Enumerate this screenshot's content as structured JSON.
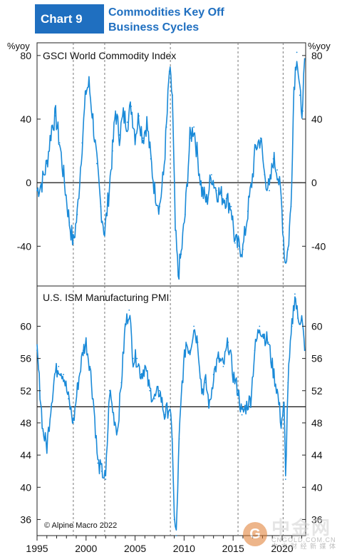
{
  "header": {
    "badge": "Chart 9",
    "title_line1": "Commodities Key Off",
    "title_line2": "Business Cycles"
  },
  "credit": "© Alpine Macro 2022",
  "watermark": {
    "brand": "中金网",
    "url": "CNGOLD.COM.CN",
    "tagline": "中 文 财 经 新 媒 体"
  },
  "colors": {
    "line": "#1a8ad8",
    "grid": "#555555",
    "accent": "#1f6fc0"
  },
  "chart_data": [
    {
      "type": "line",
      "title": "GSCI World Commodity Index",
      "ylabel_left": "%yoy",
      "ylabel_right": "%yoy",
      "ylim": [
        -65,
        88
      ],
      "xlim": [
        1995,
        2022.4
      ],
      "yticks": [
        80,
        40,
        0,
        -40
      ],
      "ytick_labels": [
        "80",
        "40",
        "0",
        "-40"
      ],
      "zero_line": 0,
      "recessions": [
        [
          1998.7,
          1998.7
        ],
        [
          2001.9,
          2001.9
        ],
        [
          2008.6,
          2008.6
        ],
        [
          2015.5,
          2015.5
        ],
        [
          2020.1,
          2020.1
        ]
      ],
      "series": [
        {
          "x": [
            1995.0,
            1995.5,
            1996.0,
            1996.5,
            1996.9,
            1997.3,
            1997.8,
            1998.3,
            1998.7,
            1999.1,
            1999.6,
            2000.0,
            2000.3,
            2000.7,
            2001.1,
            2001.5,
            2001.9,
            2002.3,
            2002.7,
            2003.0,
            2003.4,
            2003.8,
            2004.2,
            2004.6,
            2005.0,
            2005.4,
            2005.8,
            2006.2,
            2006.6,
            2007.0,
            2007.5,
            2007.9,
            2008.2,
            2008.5,
            2008.8,
            2009.1,
            2009.4,
            2009.7,
            2010.1,
            2010.6,
            2011.0,
            2011.4,
            2011.8,
            2012.3,
            2012.8,
            2013.3,
            2013.8,
            2014.3,
            2014.8,
            2015.2,
            2015.6,
            2016.0,
            2016.5,
            2016.9,
            2017.3,
            2017.8,
            2018.2,
            2018.7,
            2019.1,
            2019.5,
            2019.9,
            2020.3,
            2020.6,
            2020.9,
            2021.2,
            2021.5,
            2021.8,
            2022.1,
            2022.3
          ],
          "y": [
            -5,
            0,
            12,
            35,
            42,
            25,
            0,
            -25,
            -38,
            -20,
            25,
            58,
            62,
            40,
            12,
            -15,
            -32,
            -8,
            20,
            45,
            30,
            42,
            38,
            48,
            30,
            42,
            28,
            38,
            15,
            -5,
            -15,
            5,
            35,
            70,
            55,
            -30,
            -58,
            -45,
            -20,
            28,
            35,
            15,
            -5,
            -12,
            5,
            -5,
            -8,
            -10,
            -15,
            -38,
            -40,
            -42,
            -18,
            0,
            22,
            28,
            5,
            -5,
            15,
            8,
            -10,
            -50,
            -42,
            -15,
            60,
            82,
            55,
            45,
            78
          ]
        }
      ]
    },
    {
      "type": "line",
      "title": "U.S. ISM Manufacturing PMI",
      "ylim": [
        34,
        65
      ],
      "xlim": [
        1995,
        2022.4
      ],
      "yticks": [
        60,
        56,
        52,
        48,
        44,
        40,
        36
      ],
      "ytick_labels": [
        "60",
        "56",
        "52",
        "48",
        "44",
        "40",
        "36"
      ],
      "reference_line": 50,
      "xticks": [
        1995,
        2000,
        2005,
        2010,
        2015,
        2020
      ],
      "xtick_labels": [
        "1995",
        "2000",
        "2005",
        "2010",
        "2015",
        "2020"
      ],
      "series": [
        {
          "x": [
            1995.0,
            1995.3,
            1995.6,
            1996.0,
            1996.4,
            1996.8,
            1997.2,
            1997.7,
            1998.2,
            1998.7,
            1999.2,
            1999.7,
            2000.0,
            2000.4,
            2000.8,
            2001.2,
            2001.6,
            2002.0,
            2002.4,
            2002.8,
            2003.2,
            2003.6,
            2004.0,
            2004.4,
            2004.8,
            2005.2,
            2005.6,
            2006.0,
            2006.5,
            2007.0,
            2007.5,
            2008.0,
            2008.5,
            2008.8,
            2009.0,
            2009.2,
            2009.5,
            2009.8,
            2010.2,
            2010.6,
            2011.0,
            2011.4,
            2011.8,
            2012.2,
            2012.6,
            2013.0,
            2013.5,
            2014.0,
            2014.5,
            2015.0,
            2015.5,
            2015.9,
            2016.3,
            2016.8,
            2017.2,
            2017.7,
            2018.1,
            2018.6,
            2019.0,
            2019.5,
            2019.9,
            2020.2,
            2020.35,
            2020.6,
            2021.0,
            2021.3,
            2021.6,
            2022.0,
            2022.3
          ],
          "y": [
            57,
            52,
            47,
            45,
            50,
            54,
            55,
            54,
            51,
            48,
            53,
            57,
            58,
            55,
            50,
            43,
            42,
            41,
            52,
            49,
            47,
            53,
            60,
            62,
            56,
            56,
            54,
            55,
            52,
            51,
            52,
            49,
            50,
            46,
            36,
            34,
            46,
            53,
            58,
            57,
            60,
            58,
            52,
            53,
            50,
            54,
            56,
            55,
            58,
            54,
            52,
            49,
            50,
            51,
            57,
            60,
            59,
            58,
            55,
            52,
            48,
            50,
            41,
            53,
            60,
            64,
            61,
            61,
            57
          ]
        }
      ]
    }
  ]
}
